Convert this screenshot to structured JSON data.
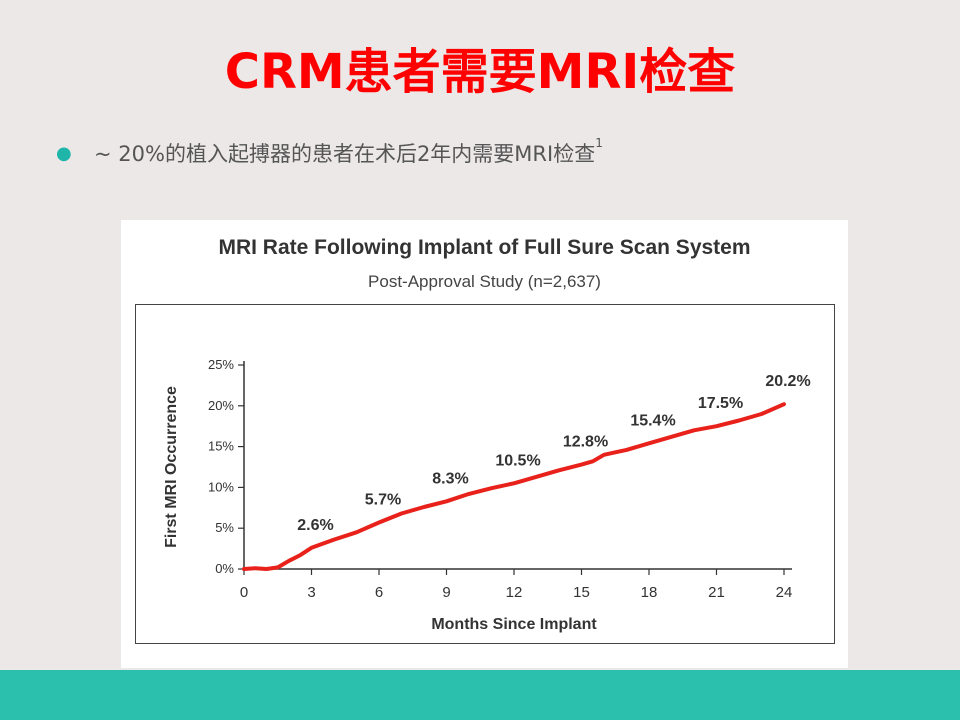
{
  "slide": {
    "title": "CRM患者需要MRI检查",
    "bullet": "~ 20%的植入起搏器的患者在术后2年内需要MRI检查",
    "bullet_ref": "1",
    "bullet_icon": "bullet-dot",
    "accent_colors": {
      "title": "#ff0000",
      "bullet": "#1fb5a8",
      "footer": "#2bbfae",
      "line": "#e8211b"
    }
  },
  "chart_data": {
    "type": "line",
    "title": "MRI Rate Following Implant of Full Sure Scan System",
    "subtitle": "Post-Approval Study (n=2,637)",
    "xlabel": "Months Since Implant",
    "ylabel": "First MRI Occurrence",
    "xlim": [
      0,
      24
    ],
    "ylim": [
      0,
      25
    ],
    "x_ticks": [
      0,
      3,
      6,
      9,
      12,
      15,
      18,
      21,
      24
    ],
    "y_ticks": [
      0,
      5,
      10,
      15,
      20,
      25
    ],
    "y_tick_labels": [
      "0%",
      "5%",
      "10%",
      "15%",
      "20%",
      "25%"
    ],
    "grid": false,
    "series": [
      {
        "x": [
          0,
          0.5,
          1,
          1.5,
          2,
          2.5,
          3,
          4,
          5,
          6,
          7,
          8,
          9,
          10,
          11,
          12,
          13,
          14,
          15,
          15.5,
          16,
          16.5,
          17,
          18,
          19,
          20,
          21,
          22,
          23,
          24
        ],
        "y": [
          0,
          0.1,
          0.0,
          0.2,
          1.0,
          1.7,
          2.6,
          3.6,
          4.5,
          5.7,
          6.8,
          7.6,
          8.3,
          9.2,
          9.9,
          10.5,
          11.3,
          12.1,
          12.8,
          13.2,
          14.0,
          14.3,
          14.6,
          15.4,
          16.2,
          17.0,
          17.5,
          18.2,
          19.0,
          20.2
        ]
      }
    ],
    "data_labels": [
      {
        "x": 3,
        "y": 2.6,
        "text": "2.6%"
      },
      {
        "x": 6,
        "y": 5.7,
        "text": "5.7%"
      },
      {
        "x": 9,
        "y": 8.3,
        "text": "8.3%"
      },
      {
        "x": 12,
        "y": 10.5,
        "text": "10.5%"
      },
      {
        "x": 15,
        "y": 12.8,
        "text": "12.8%"
      },
      {
        "x": 18,
        "y": 15.4,
        "text": "15.4%"
      },
      {
        "x": 21,
        "y": 17.5,
        "text": "17.5%"
      },
      {
        "x": 24,
        "y": 20.2,
        "text": "20.2%"
      }
    ]
  }
}
